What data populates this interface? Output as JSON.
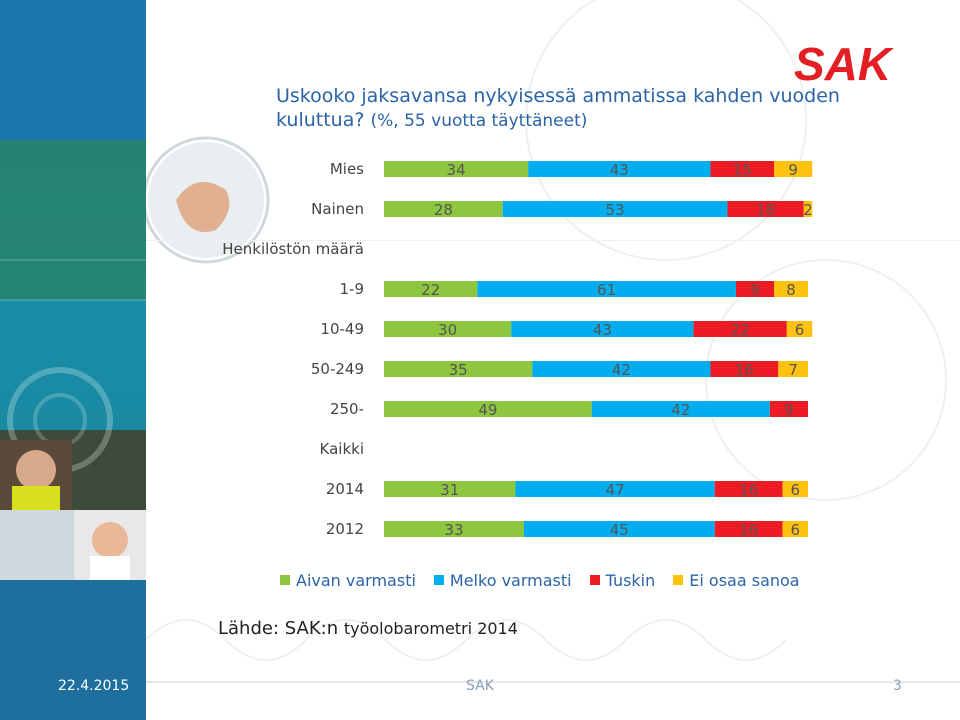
{
  "slide": {
    "title_main": "Uskooko jaksavansa nykyisessä ammatissa kahden vuoden kuluttua?",
    "title_sub": "(%, 55 vuotta täyttäneet)",
    "source_label": "Lähde: SAK:n",
    "source_rest": "työolobarometri 2014",
    "footer_date": "22.4.2015",
    "footer_org": "SAK",
    "footer_page": "3",
    "logo_text": "SAK"
  },
  "colors": {
    "green": "#8dc63f",
    "blue": "#00aeef",
    "red": "#ed1c24",
    "yellow": "#ffc20e",
    "text": "#2a63a8",
    "logo": "#e31e24"
  },
  "chart_data": {
    "type": "bar",
    "orientation": "horizontal",
    "stacked": true,
    "xlim": [
      0,
      100
    ],
    "legend_position": "bottom",
    "categories": [
      "Mies",
      "Nainen",
      "Henkilöstön määrä",
      "1-9",
      "10-49",
      "50-249",
      "250-",
      "Kaikki",
      "2014",
      "2012"
    ],
    "series": [
      {
        "name": "Aivan varmasti",
        "color": "#8dc63f",
        "values": [
          34,
          28,
          null,
          22,
          30,
          35,
          49,
          null,
          31,
          33
        ]
      },
      {
        "name": "Melko varmasti",
        "color": "#00aeef",
        "values": [
          43,
          53,
          null,
          61,
          43,
          42,
          42,
          null,
          47,
          45
        ]
      },
      {
        "name": "Tuskin",
        "color": "#ed1c24",
        "values": [
          15,
          18,
          null,
          9,
          22,
          16,
          9,
          null,
          16,
          16
        ]
      },
      {
        "name": "Ei osaa sanoa",
        "color": "#ffc20e",
        "values": [
          9,
          2,
          null,
          8,
          6,
          7,
          0,
          null,
          6,
          6
        ]
      }
    ]
  }
}
